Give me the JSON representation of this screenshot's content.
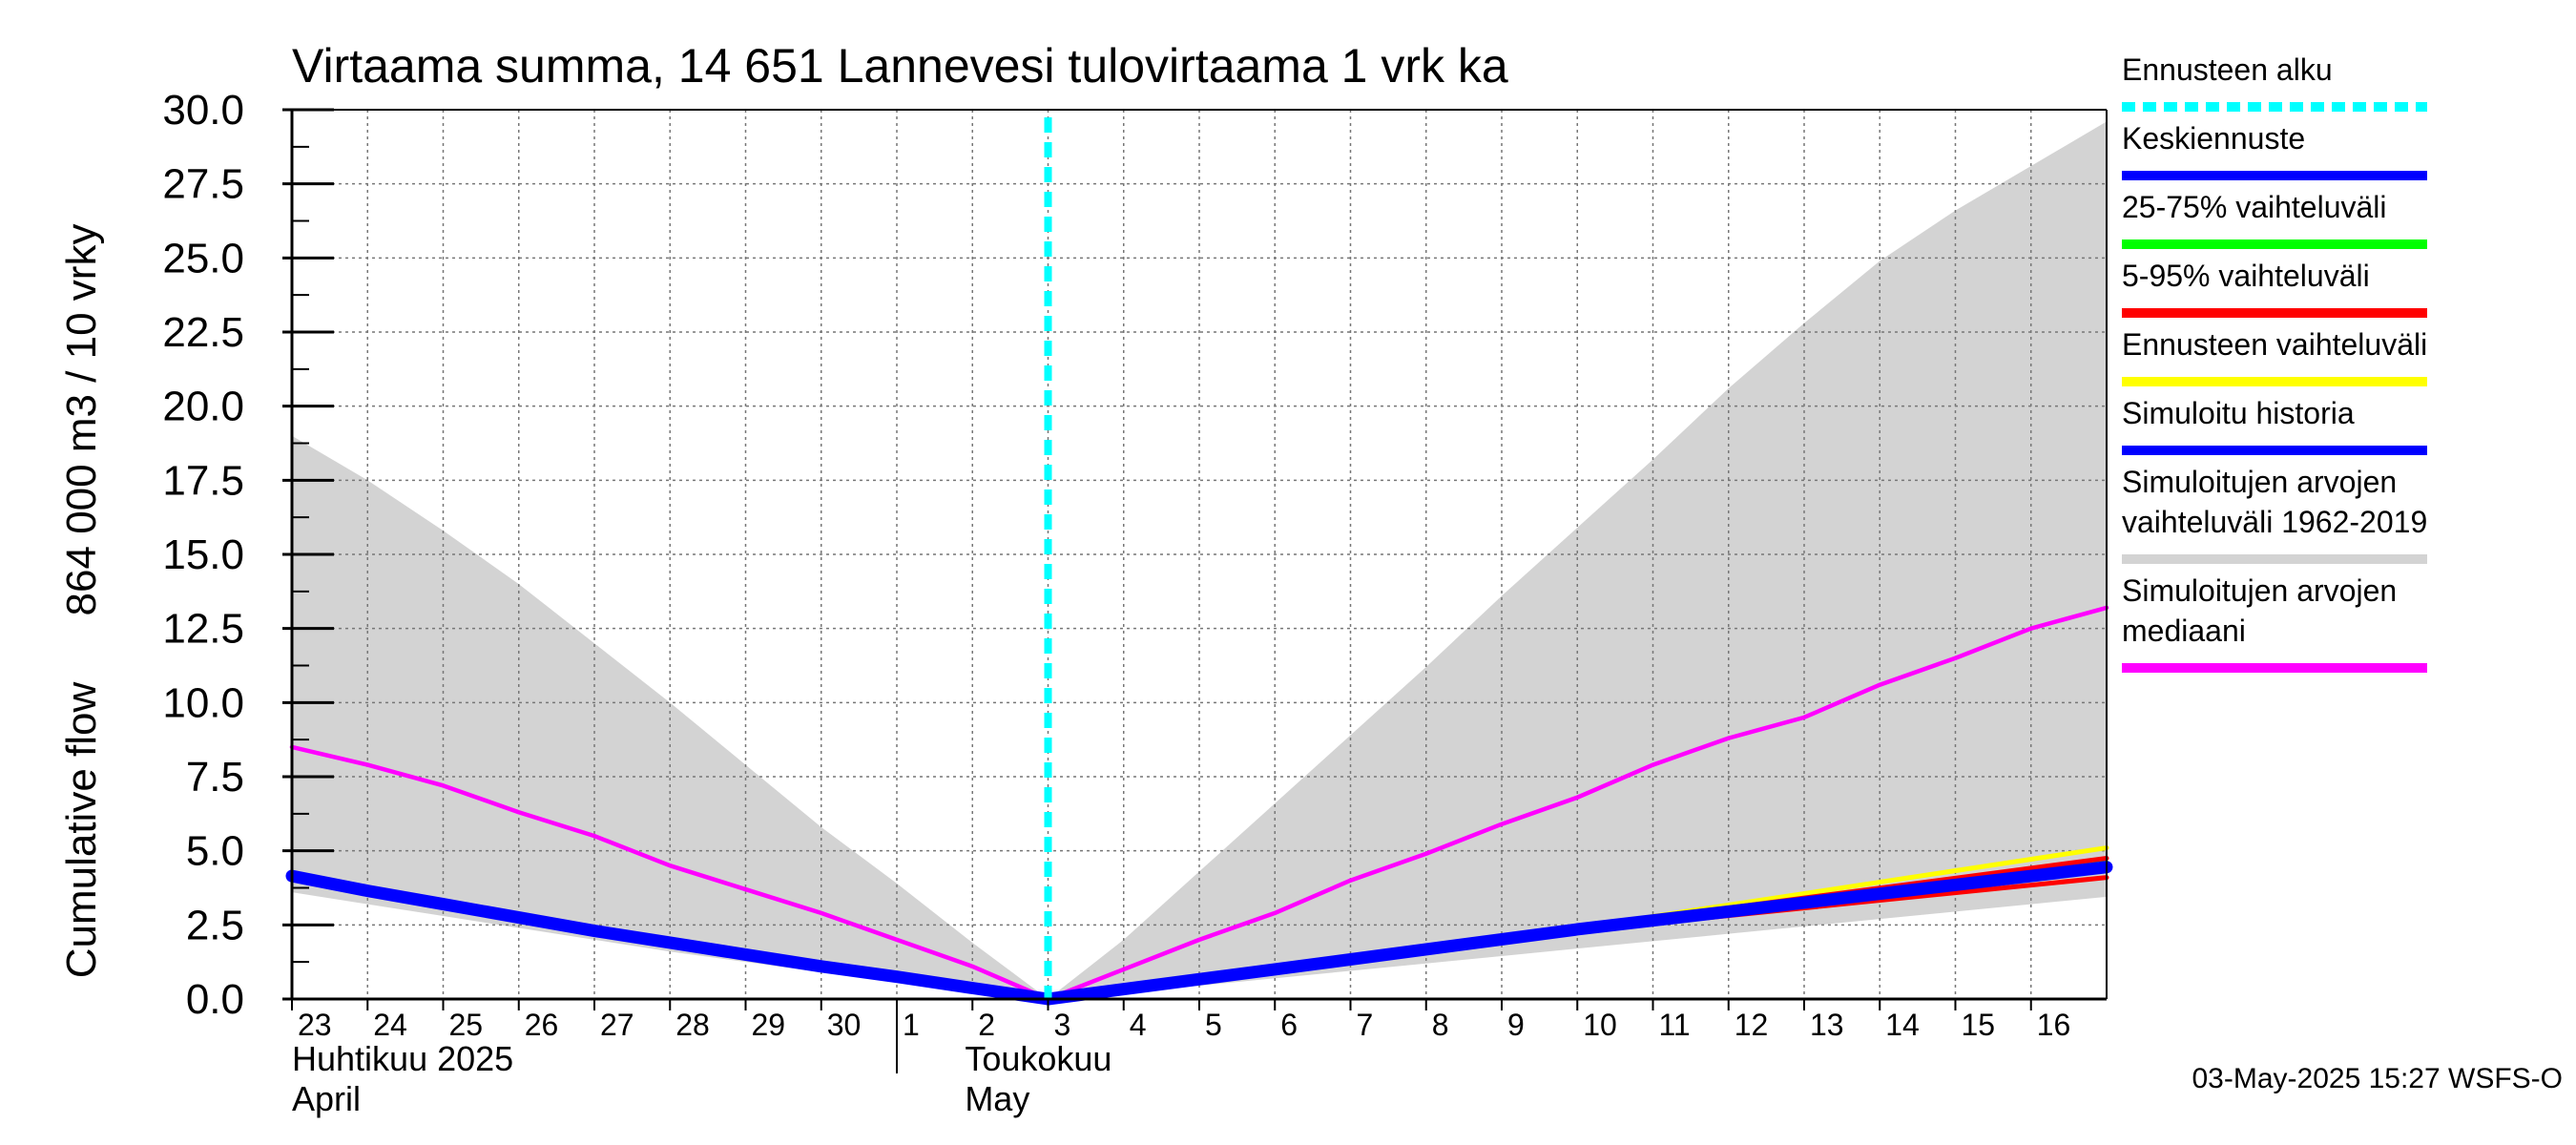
{
  "chart_data": {
    "type": "line",
    "title": "Virtaama summa, 14 651 Lannevesi tulovirtaama 1 vrk ka",
    "ylabel": "864 000 m3 / 10 vrky",
    "ylabel2": "Cumulative flow",
    "ylim": [
      0,
      30
    ],
    "yticks": [
      "0.0",
      "2.5",
      "5.0",
      "7.5",
      "10.0",
      "12.5",
      "15.0",
      "17.5",
      "20.0",
      "22.5",
      "25.0",
      "27.5",
      "30.0"
    ],
    "ytick_values": [
      0,
      2.5,
      5,
      7.5,
      10,
      12.5,
      15,
      17.5,
      20,
      22.5,
      25,
      27.5,
      30
    ],
    "xlim": [
      -10,
      14
    ],
    "x_unit": "days relative to 3 May 2025",
    "xticks": [
      {
        "label": "23",
        "x": -10
      },
      {
        "label": "24",
        "x": -9
      },
      {
        "label": "25",
        "x": -8
      },
      {
        "label": "26",
        "x": -7
      },
      {
        "label": "27",
        "x": -6
      },
      {
        "label": "28",
        "x": -5
      },
      {
        "label": "29",
        "x": -4
      },
      {
        "label": "30",
        "x": -3
      },
      {
        "label": "1",
        "x": -2
      },
      {
        "label": "2",
        "x": -1
      },
      {
        "label": "3",
        "x": 0
      },
      {
        "label": "4",
        "x": 1
      },
      {
        "label": "5",
        "x": 2
      },
      {
        "label": "6",
        "x": 3
      },
      {
        "label": "7",
        "x": 4
      },
      {
        "label": "8",
        "x": 5
      },
      {
        "label": "9",
        "x": 6
      },
      {
        "label": "10",
        "x": 7
      },
      {
        "label": "11",
        "x": 8
      },
      {
        "label": "12",
        "x": 9
      },
      {
        "label": "13",
        "x": 10
      },
      {
        "label": "14",
        "x": 11
      },
      {
        "label": "15",
        "x": 12
      },
      {
        "label": "16",
        "x": 13
      }
    ],
    "month_labels": [
      {
        "line1": "Huhtikuu  2025",
        "line2": "April",
        "x": -10
      },
      {
        "line1": "Toukokuu",
        "line2": "May",
        "x": -1.1
      }
    ],
    "month_separator_x": -2,
    "forecast_start_x": 0,
    "grid": true,
    "legend_position": "right",
    "series": [
      {
        "name": "Simuloitujen arvojen vaihteluväli 1962-2019",
        "kind": "band",
        "color": "#d3d3d3",
        "x": [
          -10,
          -9,
          -8,
          -7,
          -6,
          -5,
          -4,
          -3,
          -2,
          -1,
          0,
          1,
          2,
          3,
          4,
          5,
          6,
          7,
          8,
          9,
          10,
          11,
          12,
          13,
          14
        ],
        "upper": [
          19.0,
          17.5,
          15.8,
          14.0,
          12.0,
          10.0,
          7.9,
          5.8,
          3.9,
          1.9,
          0.0,
          2.0,
          4.3,
          6.6,
          8.9,
          11.2,
          13.6,
          15.9,
          18.2,
          20.6,
          22.8,
          24.9,
          26.6,
          28.1,
          29.6
        ],
        "lower": [
          3.6,
          3.2,
          2.8,
          2.4,
          2.0,
          1.6,
          1.25,
          0.9,
          0.55,
          0.25,
          0.0,
          0.2,
          0.45,
          0.7,
          0.95,
          1.2,
          1.45,
          1.7,
          1.95,
          2.2,
          2.45,
          2.7,
          2.95,
          3.2,
          3.45
        ]
      },
      {
        "name": "Simuloitujen arvojen mediaani",
        "kind": "line",
        "color": "#ff00ff",
        "x": [
          -10,
          -9,
          -8,
          -7,
          -6,
          -5,
          -4,
          -3,
          -2,
          -1,
          0,
          1,
          2,
          3,
          4,
          5,
          6,
          7,
          8,
          9,
          10,
          11,
          12,
          13,
          14
        ],
        "values": [
          8.5,
          7.9,
          7.2,
          6.3,
          5.5,
          4.5,
          3.7,
          2.9,
          2.0,
          1.1,
          0.0,
          1.0,
          2.0,
          2.9,
          4.0,
          4.9,
          5.9,
          6.8,
          7.9,
          8.8,
          9.5,
          10.6,
          11.5,
          12.5,
          13.2
        ]
      },
      {
        "name": "Simuloitu historia",
        "kind": "line",
        "color": "#0000ff",
        "x": [
          -10,
          -9,
          -8,
          -7,
          -6,
          -5,
          -4,
          -3,
          -2,
          -1,
          0
        ],
        "values": [
          4.15,
          3.65,
          3.2,
          2.75,
          2.3,
          1.9,
          1.5,
          1.1,
          0.75,
          0.37,
          0.0
        ]
      },
      {
        "name": "Ennusteen vaihteluväli",
        "kind": "line",
        "color": "#ffff00",
        "x": [
          0,
          7,
          14
        ],
        "values": [
          0.0,
          2.4,
          5.1
        ]
      },
      {
        "name": "5-95% vaihteluväli",
        "kind": "line",
        "color": "#ff0000",
        "x": [
          0,
          7,
          14
        ],
        "values": [
          0.0,
          2.3,
          4.1
        ]
      },
      {
        "name": "25-75% vaihteluväli",
        "kind": "line",
        "color": "#00ff00",
        "x": [
          0,
          7,
          14
        ],
        "values": [
          0.0,
          2.35,
          4.6
        ]
      },
      {
        "name": "5-95% vaihteluväli",
        "kind": "line",
        "color": "#ff0000",
        "x": [
          0,
          7,
          14
        ],
        "values": [
          0.0,
          2.4,
          4.75
        ]
      },
      {
        "name": "Keskiennuste",
        "kind": "line",
        "color": "#0000ff",
        "x": [
          0,
          3,
          7,
          10,
          14
        ],
        "values": [
          0.0,
          1.0,
          2.35,
          3.25,
          4.45
        ]
      }
    ],
    "legend": [
      {
        "lines": [
          "Ennusteen alku"
        ],
        "color": "#00ffff",
        "dashed": true
      },
      {
        "lines": [
          "Keskiennuste"
        ],
        "color": "#0000ff"
      },
      {
        "lines": [
          "25-75% vaihteluväli"
        ],
        "color": "#00ff00"
      },
      {
        "lines": [
          "5-95% vaihteluväli"
        ],
        "color": "#ff0000"
      },
      {
        "lines": [
          "Ennusteen vaihteluväli"
        ],
        "color": "#ffff00"
      },
      {
        "lines": [
          "Simuloitu historia"
        ],
        "color": "#0000ff"
      },
      {
        "lines": [
          "Simuloitujen arvojen",
          "vaihteluväli 1962-2019"
        ],
        "color": "#d3d3d3"
      },
      {
        "lines": [
          "Simuloitujen arvojen",
          "mediaani"
        ],
        "color": "#ff00ff"
      }
    ]
  },
  "footer": {
    "timestamp": "03-May-2025 15:27 WSFS-O"
  }
}
